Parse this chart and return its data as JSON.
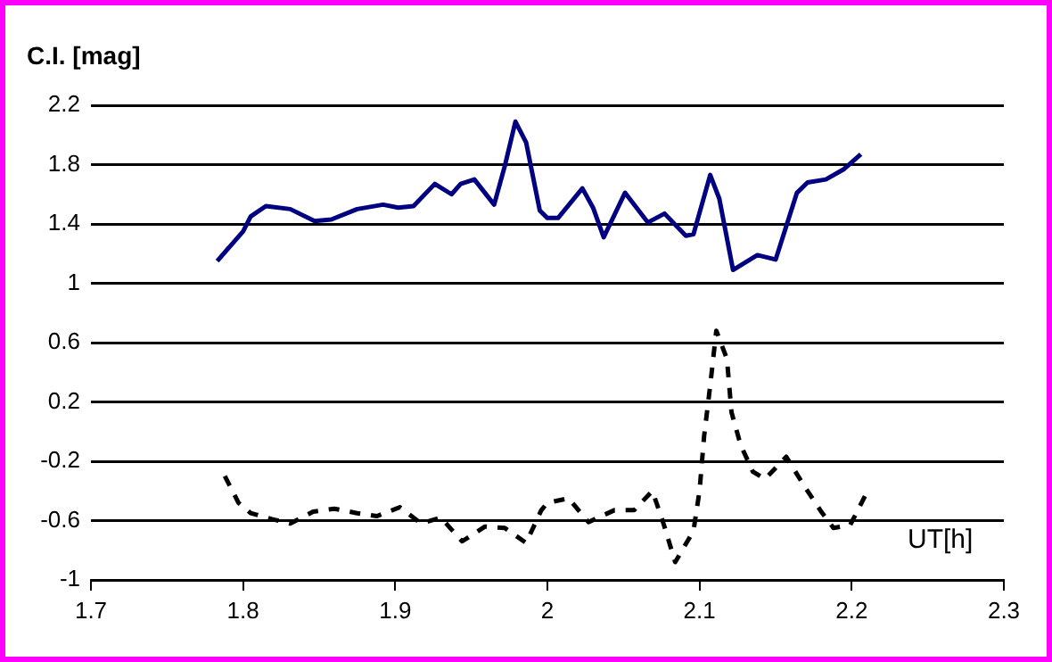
{
  "chart_data": {
    "type": "line",
    "xlabel": "UT[h]",
    "ylabel": "C.I. [mag]",
    "xlim": [
      1.7,
      2.3
    ],
    "xticks": [
      1.7,
      1.8,
      1.9,
      2,
      2.1,
      2.2,
      2.3
    ],
    "ylim": [
      -1,
      2.2
    ],
    "yticks": [
      -1,
      -0.6,
      -0.2,
      0.2,
      0.6,
      1,
      1.4,
      1.8,
      2.2
    ],
    "grid": "y",
    "legend": false,
    "marker": "none",
    "series": [
      {
        "color": "#000080",
        "line_style": "solid",
        "x": [
          1.783,
          1.8,
          1.805,
          1.815,
          1.831,
          1.847,
          1.858,
          1.875,
          1.892,
          1.902,
          1.912,
          1.926,
          1.937,
          1.943,
          1.952,
          1.965,
          1.972,
          1.979,
          1.986,
          1.995,
          2.0,
          2.007,
          2.023,
          2.03,
          2.037,
          2.051,
          2.066,
          2.077,
          2.091,
          2.096,
          2.107,
          2.113,
          2.122,
          2.138,
          2.15,
          2.164,
          2.171,
          2.183,
          2.195,
          2.206
        ],
        "values": [
          1.15,
          1.35,
          1.45,
          1.52,
          1.5,
          1.42,
          1.43,
          1.5,
          1.53,
          1.51,
          1.52,
          1.67,
          1.6,
          1.67,
          1.7,
          1.53,
          1.79,
          2.09,
          1.95,
          1.49,
          1.44,
          1.44,
          1.64,
          1.51,
          1.31,
          1.61,
          1.41,
          1.47,
          1.32,
          1.33,
          1.73,
          1.57,
          1.09,
          1.19,
          1.16,
          1.61,
          1.68,
          1.7,
          1.77,
          1.87
        ]
      },
      {
        "color": "#000000",
        "line_style": "dashed",
        "x": [
          1.788,
          1.797,
          1.805,
          1.819,
          1.831,
          1.846,
          1.86,
          1.875,
          1.888,
          1.903,
          1.917,
          1.93,
          1.944,
          1.959,
          1.972,
          1.986,
          1.996,
          2.0,
          2.014,
          2.027,
          2.044,
          2.057,
          2.069,
          2.076,
          2.084,
          2.096,
          2.1,
          2.103,
          2.107,
          2.111,
          2.118,
          2.121,
          2.127,
          2.135,
          2.143,
          2.157,
          2.169,
          2.18,
          2.188,
          2.199,
          2.209
        ],
        "values": [
          -0.3,
          -0.48,
          -0.55,
          -0.59,
          -0.62,
          -0.54,
          -0.52,
          -0.55,
          -0.57,
          -0.51,
          -0.62,
          -0.58,
          -0.74,
          -0.64,
          -0.65,
          -0.75,
          -0.53,
          -0.48,
          -0.45,
          -0.61,
          -0.53,
          -0.53,
          -0.4,
          -0.61,
          -0.88,
          -0.67,
          -0.4,
          -0.03,
          0.31,
          0.68,
          0.49,
          0.13,
          -0.09,
          -0.27,
          -0.32,
          -0.17,
          -0.37,
          -0.54,
          -0.65,
          -0.63,
          -0.43
        ]
      }
    ]
  }
}
